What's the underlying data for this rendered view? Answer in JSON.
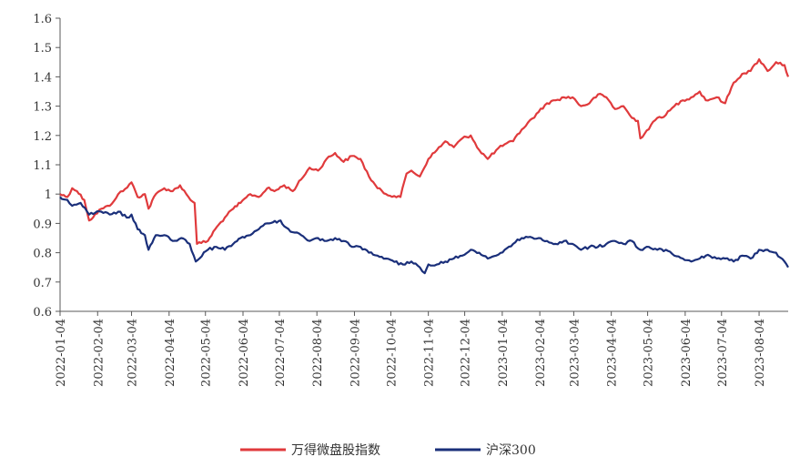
{
  "chart_data": {
    "type": "line",
    "title": "",
    "xlabel": "",
    "ylabel": "",
    "ylim": [
      0.6,
      1.6
    ],
    "xlim": [
      "2022-01-04",
      "2023-08-28"
    ],
    "y_ticks": [
      "0.6",
      "0.7",
      "0.8",
      "0.9",
      "1",
      "1.1",
      "1.2",
      "1.3",
      "1.4",
      "1.5",
      "1.6"
    ],
    "x_ticks": [
      "2022-01-04",
      "2022-02-04",
      "2022-03-04",
      "2022-04-04",
      "2022-05-04",
      "2022-06-04",
      "2022-07-04",
      "2022-08-04",
      "2022-09-04",
      "2022-10-04",
      "2022-11-04",
      "2022-12-04",
      "2023-01-04",
      "2023-02-04",
      "2023-03-04",
      "2023-04-04",
      "2023-05-04",
      "2023-06-04",
      "2023-07-04",
      "2023-08-04"
    ],
    "grid": false,
    "legend_position": "bottom",
    "series": [
      {
        "name": "万得微盘股指数",
        "color": "#e03a3c",
        "x": [
          "2022-01-04",
          "2022-01-10",
          "2022-01-14",
          "2022-01-18",
          "2022-01-24",
          "2022-01-28",
          "2022-02-07",
          "2022-02-14",
          "2022-02-21",
          "2022-02-25",
          "2022-03-04",
          "2022-03-09",
          "2022-03-15",
          "2022-03-18",
          "2022-03-24",
          "2022-03-31",
          "2022-04-07",
          "2022-04-13",
          "2022-04-20",
          "2022-04-25",
          "2022-04-27",
          "2022-05-06",
          "2022-05-12",
          "2022-05-20",
          "2022-05-27",
          "2022-06-02",
          "2022-06-10",
          "2022-06-17",
          "2022-06-24",
          "2022-06-30",
          "2022-07-08",
          "2022-07-15",
          "2022-07-22",
          "2022-07-29",
          "2022-08-05",
          "2022-08-12",
          "2022-08-19",
          "2022-08-26",
          "2022-09-02",
          "2022-09-09",
          "2022-09-16",
          "2022-09-23",
          "2022-09-30",
          "2022-10-12",
          "2022-10-17",
          "2022-10-21",
          "2022-10-28",
          "2022-11-04",
          "2022-11-11",
          "2022-11-18",
          "2022-11-25",
          "2022-12-02",
          "2022-12-09",
          "2022-12-16",
          "2022-12-23",
          "2022-12-30",
          "2023-01-06",
          "2023-01-13",
          "2023-01-20",
          "2023-02-03",
          "2023-02-10",
          "2023-02-17",
          "2023-02-24",
          "2023-03-03",
          "2023-03-10",
          "2023-03-17",
          "2023-03-24",
          "2023-03-31",
          "2023-04-07",
          "2023-04-14",
          "2023-04-21",
          "2023-04-26",
          "2023-04-28",
          "2023-05-12",
          "2023-05-19",
          "2023-05-26",
          "2023-06-02",
          "2023-06-09",
          "2023-06-16",
          "2023-06-21",
          "2023-06-30",
          "2023-07-07",
          "2023-07-14",
          "2023-07-21",
          "2023-07-28",
          "2023-08-04",
          "2023-08-11",
          "2023-08-18",
          "2023-08-25",
          "2023-08-28"
        ],
        "values": [
          1.0,
          0.99,
          1.02,
          1.01,
          0.98,
          0.91,
          0.95,
          0.96,
          1.0,
          1.01,
          1.04,
          0.99,
          1.0,
          0.95,
          1.0,
          1.02,
          1.01,
          1.03,
          0.99,
          0.97,
          0.83,
          0.84,
          0.88,
          0.92,
          0.95,
          0.97,
          1.0,
          0.99,
          1.02,
          1.01,
          1.03,
          1.01,
          1.05,
          1.09,
          1.08,
          1.12,
          1.14,
          1.11,
          1.13,
          1.12,
          1.06,
          1.02,
          1.0,
          0.99,
          1.07,
          1.08,
          1.06,
          1.12,
          1.15,
          1.18,
          1.16,
          1.19,
          1.2,
          1.15,
          1.12,
          1.15,
          1.17,
          1.18,
          1.22,
          1.28,
          1.31,
          1.32,
          1.33,
          1.33,
          1.3,
          1.31,
          1.34,
          1.33,
          1.29,
          1.3,
          1.26,
          1.25,
          1.19,
          1.26,
          1.27,
          1.3,
          1.32,
          1.33,
          1.35,
          1.32,
          1.33,
          1.31,
          1.38,
          1.41,
          1.42,
          1.46,
          1.42,
          1.45,
          1.44,
          1.4
        ]
      },
      {
        "name": "沪深300",
        "color": "#1a2f7a",
        "x": [
          "2022-01-04",
          "2022-01-10",
          "2022-01-14",
          "2022-01-21",
          "2022-01-28",
          "2022-02-07",
          "2022-02-14",
          "2022-02-21",
          "2022-02-28",
          "2022-03-04",
          "2022-03-09",
          "2022-03-15",
          "2022-03-18",
          "2022-03-24",
          "2022-03-31",
          "2022-04-07",
          "2022-04-14",
          "2022-04-21",
          "2022-04-26",
          "2022-05-06",
          "2022-05-13",
          "2022-05-20",
          "2022-05-27",
          "2022-06-02",
          "2022-06-10",
          "2022-06-17",
          "2022-06-24",
          "2022-07-05",
          "2022-07-08",
          "2022-07-15",
          "2022-07-22",
          "2022-07-29",
          "2022-08-05",
          "2022-08-12",
          "2022-08-19",
          "2022-08-26",
          "2022-09-02",
          "2022-09-09",
          "2022-09-16",
          "2022-09-23",
          "2022-09-30",
          "2022-10-14",
          "2022-10-21",
          "2022-10-28",
          "2022-11-01",
          "2022-11-04",
          "2022-11-11",
          "2022-11-18",
          "2022-11-25",
          "2022-12-02",
          "2022-12-09",
          "2022-12-16",
          "2022-12-23",
          "2022-12-30",
          "2023-01-06",
          "2023-01-13",
          "2023-01-20",
          "2023-02-03",
          "2023-02-10",
          "2023-02-17",
          "2023-02-24",
          "2023-03-03",
          "2023-03-10",
          "2023-03-17",
          "2023-03-24",
          "2023-03-31",
          "2023-04-07",
          "2023-04-14",
          "2023-04-21",
          "2023-04-28",
          "2023-05-05",
          "2023-05-12",
          "2023-05-19",
          "2023-05-26",
          "2023-06-02",
          "2023-06-09",
          "2023-06-16",
          "2023-06-21",
          "2023-06-30",
          "2023-07-07",
          "2023-07-14",
          "2023-07-21",
          "2023-07-28",
          "2023-08-04",
          "2023-08-11",
          "2023-08-18",
          "2023-08-25",
          "2023-08-28"
        ],
        "values": [
          0.99,
          0.98,
          0.96,
          0.97,
          0.93,
          0.94,
          0.93,
          0.94,
          0.92,
          0.93,
          0.88,
          0.86,
          0.81,
          0.86,
          0.86,
          0.84,
          0.85,
          0.83,
          0.77,
          0.81,
          0.82,
          0.81,
          0.83,
          0.85,
          0.86,
          0.88,
          0.9,
          0.91,
          0.89,
          0.87,
          0.86,
          0.84,
          0.85,
          0.84,
          0.85,
          0.84,
          0.82,
          0.82,
          0.8,
          0.79,
          0.78,
          0.76,
          0.77,
          0.75,
          0.73,
          0.76,
          0.76,
          0.77,
          0.78,
          0.79,
          0.81,
          0.8,
          0.78,
          0.79,
          0.81,
          0.83,
          0.85,
          0.85,
          0.84,
          0.83,
          0.84,
          0.83,
          0.81,
          0.82,
          0.82,
          0.83,
          0.84,
          0.83,
          0.84,
          0.81,
          0.82,
          0.81,
          0.81,
          0.79,
          0.78,
          0.77,
          0.78,
          0.79,
          0.78,
          0.78,
          0.77,
          0.79,
          0.78,
          0.81,
          0.81,
          0.8,
          0.77,
          0.75
        ]
      }
    ]
  }
}
